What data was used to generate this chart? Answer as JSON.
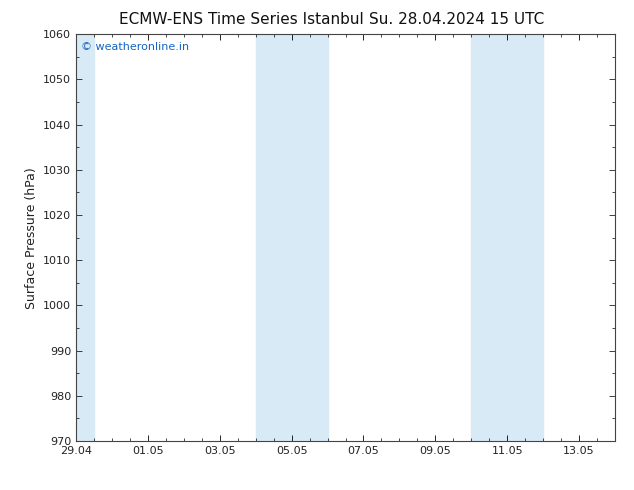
{
  "title": "ECMW-ENS Time Series Istanbul",
  "title2": "Su. 28.04.2024 15 UTC",
  "ylabel": "Surface Pressure (hPa)",
  "ylim": [
    970,
    1060
  ],
  "yticks": [
    970,
    980,
    990,
    1000,
    1010,
    1020,
    1030,
    1040,
    1050,
    1060
  ],
  "xlim": [
    0,
    15
  ],
  "xtick_labels": [
    "29.04",
    "01.05",
    "03.05",
    "05.05",
    "07.05",
    "09.05",
    "11.05",
    "13.05"
  ],
  "xtick_positions": [
    0,
    2,
    4,
    6,
    8,
    10,
    12,
    14
  ],
  "shaded_bands": [
    {
      "x_start": 0,
      "x_end": 0.5
    },
    {
      "x_start": 5,
      "x_end": 6
    },
    {
      "x_start": 6,
      "x_end": 7
    },
    {
      "x_start": 11,
      "x_end": 12
    },
    {
      "x_start": 12,
      "x_end": 13
    }
  ],
  "watermark_text": "© weatheronline.in",
  "watermark_color": "#1565c0",
  "background_color": "#ffffff",
  "plot_bg_color": "#ffffff",
  "title_fontsize": 11,
  "ylabel_fontsize": 9,
  "tick_fontsize": 8,
  "border_color": "#444444",
  "shaded_color": "#d8eaf6"
}
